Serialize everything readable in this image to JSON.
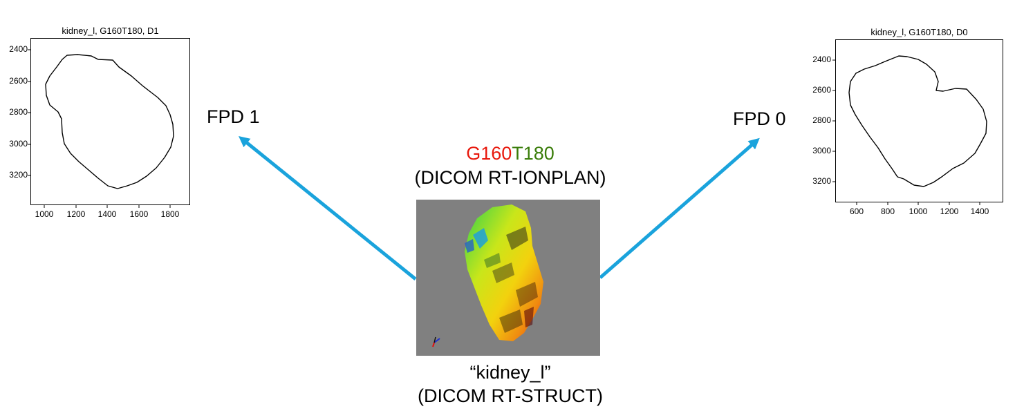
{
  "plots": [
    {
      "title": "kidney_l, G160T180, D1",
      "yticks": [
        "2400",
        "2600",
        "2800",
        "3000",
        "3200"
      ],
      "xticks": [
        "1000",
        "1200",
        "1400",
        "1600",
        "1800"
      ]
    },
    {
      "title": "kidney_l, G160T180, D0",
      "yticks": [
        "2400",
        "2600",
        "2800",
        "3000",
        "3200"
      ],
      "xticks": [
        "600",
        "800",
        "1000",
        "1200",
        "1400"
      ]
    }
  ],
  "labels": {
    "fpd_left": "FPD 1",
    "fpd_right": "FPD 0",
    "plan_gantry": "G160",
    "plan_table": "T180",
    "plan_type": "(DICOM RT-IONPLAN)",
    "struct_name": "“kidney_l”",
    "struct_type": "(DICOM RT-STRUCT)"
  },
  "colors": {
    "gantry": "#e8180c",
    "table": "#3a7d0a",
    "arrow": "#1aa3dc",
    "render_bg": "#808080"
  }
}
